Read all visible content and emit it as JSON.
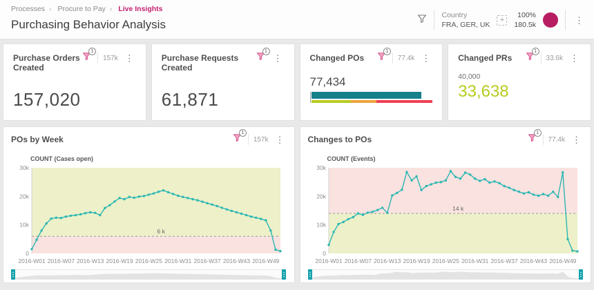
{
  "breadcrumb": {
    "items": [
      "Processes",
      "Procure to Pay",
      "Live Insights"
    ]
  },
  "page_title": "Purchasing Behavior Analysis",
  "header_controls": {
    "country_filter": {
      "label": "Country",
      "value": "FRA, GER, UK"
    },
    "add_filter_glyph": "+",
    "load_percent": "100%",
    "load_count": "180.5k",
    "kebab_glyph": "⋮"
  },
  "icons": {
    "header_filter": "funnel-icon",
    "add_filter": "add-filter-icon",
    "data_circle": "data-load-circle-icon",
    "kebab": "kebab-menu-icon",
    "card_filter": "funnel-filter-icon"
  },
  "kpi_cards": [
    {
      "title": "Purchase Orders Created",
      "badge": "1",
      "count": "157k",
      "value": "157,020"
    },
    {
      "title": "Purchase Requests Created",
      "badge": "1",
      "value": "61,871"
    },
    {
      "title": "Changed POs",
      "badge": "1",
      "count": "77.4k",
      "value": "77,434",
      "bullet": {
        "bar_percent": 91,
        "bar_color": "#15808a",
        "bands": [
          {
            "name": "good",
            "color": "#b8cc1f",
            "percent": 33
          },
          {
            "name": "warn",
            "color": "#f0a23c",
            "percent": 21
          },
          {
            "name": "bad",
            "color": "#ee4054",
            "percent": 46
          }
        ]
      }
    },
    {
      "title": "Changed PRs",
      "badge": "1",
      "count": "33.6k",
      "target": "40,000",
      "value": "33,638",
      "value_color": "#b8cc1f"
    }
  ],
  "chart_cards": [
    {
      "badge": "1",
      "count": "157k"
    },
    {
      "badge": "1",
      "count": "77.4k"
    }
  ],
  "chart_data": [
    {
      "type": "line",
      "title": "POs by Week",
      "ylabel": "COUNT (Cases open)",
      "x_ticks": [
        "2016-W01",
        "2016-W07",
        "2016-W13",
        "2016-W19",
        "2016-W25",
        "2016-W31",
        "2016-W37",
        "2016-W43",
        "2016-W49"
      ],
      "y_ticks": [
        "0",
        "10k",
        "20k",
        "30k"
      ],
      "ylim": [
        0,
        30000
      ],
      "threshold": 6000,
      "threshold_label": "6 k",
      "zone_above_color": "#edf0c9",
      "zone_below_color": "#f9e2df",
      "line_color": "#2bb7b3",
      "legend_position": "none",
      "grid": false,
      "values": [
        1500,
        4800,
        8000,
        10500,
        12200,
        12500,
        12400,
        12900,
        13200,
        13400,
        13700,
        14100,
        14400,
        14200,
        13400,
        15900,
        16900,
        18200,
        19400,
        19000,
        19800,
        19500,
        19900,
        20100,
        20600,
        21000,
        21600,
        22100,
        21400,
        20800,
        20200,
        19800,
        19400,
        19000,
        18600,
        18100,
        17600,
        17100,
        16600,
        16000,
        15400,
        14900,
        14400,
        13900,
        13400,
        12900,
        12500,
        12100,
        11600,
        8000,
        1300,
        800
      ]
    },
    {
      "type": "line",
      "title": "Changes to POs",
      "ylabel": "COUNT (Events)",
      "x_ticks": [
        "2016-W01",
        "2016-W07",
        "2016-W13",
        "2016-W19",
        "2016-W25",
        "2016-W31",
        "2016-W37",
        "2016-W43",
        "2016-W49"
      ],
      "y_ticks": [
        "0",
        "10k",
        "20k",
        "30k"
      ],
      "ylim": [
        0,
        30000
      ],
      "threshold": 14000,
      "threshold_label": "14 k",
      "zone_above_color": "#f9e2df",
      "zone_below_color": "#edf0c9",
      "line_color": "#2bb7b3",
      "legend_position": "none",
      "grid": false,
      "values": [
        3000,
        7500,
        10300,
        11000,
        12000,
        12700,
        14000,
        13500,
        14300,
        14600,
        15200,
        16000,
        14200,
        20300,
        21200,
        22300,
        28500,
        25600,
        27000,
        22200,
        23600,
        24200,
        24800,
        25000,
        25600,
        28800,
        26800,
        26200,
        28300,
        27600,
        26200,
        25400,
        26000,
        24800,
        25200,
        24600,
        23600,
        23000,
        22200,
        21600,
        21000,
        21400,
        20600,
        20200,
        20800,
        20200,
        21600,
        19800,
        28400,
        5000,
        1000,
        700
      ]
    }
  ],
  "colors": {
    "magenta_accent": "#b81d62",
    "breadcrumb_active": "#c4216e",
    "teal_bar": "#15808a",
    "line_teal": "#2bb7b3",
    "lime": "#b8cc1f",
    "orange": "#f0a23c",
    "red": "#ee4054",
    "slider_handle": "#14a2ac"
  }
}
